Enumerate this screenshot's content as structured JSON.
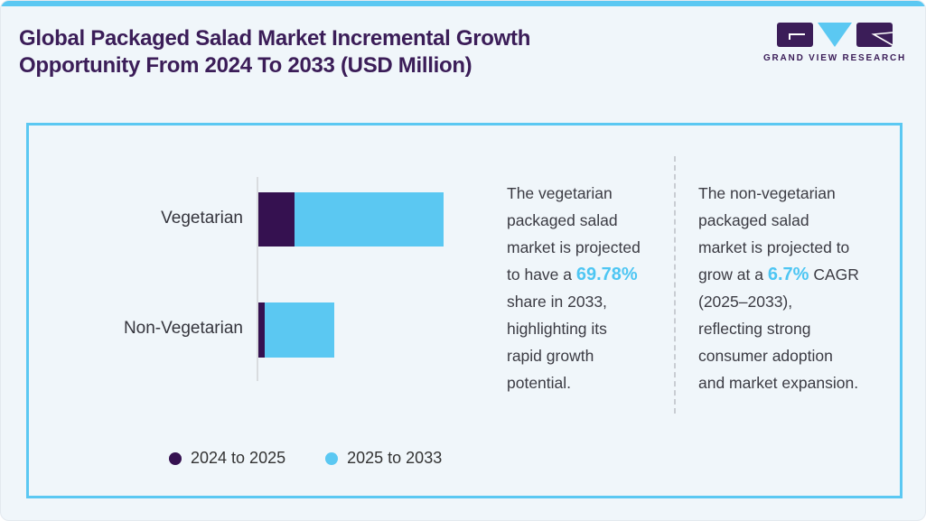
{
  "header": {
    "title_lines": [
      "Global Packaged Salad Market Incremental Growth",
      "Opportunity From 2024 To 2033 (USD Million)"
    ],
    "brand": {
      "name": "GRAND VIEW RESEARCH"
    }
  },
  "colors": {
    "accent_blue": "#5bc8f2",
    "dark_purple": "#351150",
    "title_purple": "#3b1d58",
    "highlight_text_blue": "#4ec6f3",
    "page_bg": "#f0f6fa",
    "body_text": "#3b3b43"
  },
  "chart_data": {
    "type": "bar",
    "orientation": "horizontal",
    "stacked": true,
    "title": "Global Packaged Salad Market Incremental Growth Opportunity From 2024 To 2033 (USD Million)",
    "categories": [
      "Vegetarian",
      "Non-Vegetarian"
    ],
    "series": [
      {
        "name": "2024 to 2025",
        "color": "#351150",
        "values": [
          40,
          7
        ]
      },
      {
        "name": "2025 to 2033",
        "color": "#5bc8f2",
        "values": [
          165,
          77
        ]
      }
    ],
    "value_axis": {
      "labeled": false,
      "note": "No tick values shown; values are relative bar lengths (px)"
    },
    "legend_position": "bottom",
    "grid": false
  },
  "insights": {
    "columns": [
      {
        "lines": [
          {
            "pre": "The vegetarian",
            "hl": "",
            "post": ""
          },
          {
            "pre": "packaged salad",
            "hl": "",
            "post": ""
          },
          {
            "pre": "market is projected",
            "hl": "",
            "post": ""
          },
          {
            "pre": "to have a ",
            "hl": "69.78%",
            "post": ""
          },
          {
            "pre": "share in 2033,",
            "hl": "",
            "post": ""
          },
          {
            "pre": "highlighting its",
            "hl": "",
            "post": ""
          },
          {
            "pre": "rapid growth",
            "hl": "",
            "post": ""
          },
          {
            "pre": "potential.",
            "hl": "",
            "post": ""
          }
        ]
      },
      {
        "lines": [
          {
            "pre": "The non-vegetarian",
            "hl": "",
            "post": ""
          },
          {
            "pre": "packaged salad",
            "hl": "",
            "post": ""
          },
          {
            "pre": "market is projected to",
            "hl": "",
            "post": ""
          },
          {
            "pre": "grow at a ",
            "hl": "6.7%",
            "post": " CAGR"
          },
          {
            "pre": "(2025–2033),",
            "hl": "",
            "post": ""
          },
          {
            "pre": "reflecting strong",
            "hl": "",
            "post": ""
          },
          {
            "pre": "consumer adoption",
            "hl": "",
            "post": ""
          },
          {
            "pre": "and market expansion.",
            "hl": "",
            "post": ""
          }
        ]
      }
    ]
  }
}
